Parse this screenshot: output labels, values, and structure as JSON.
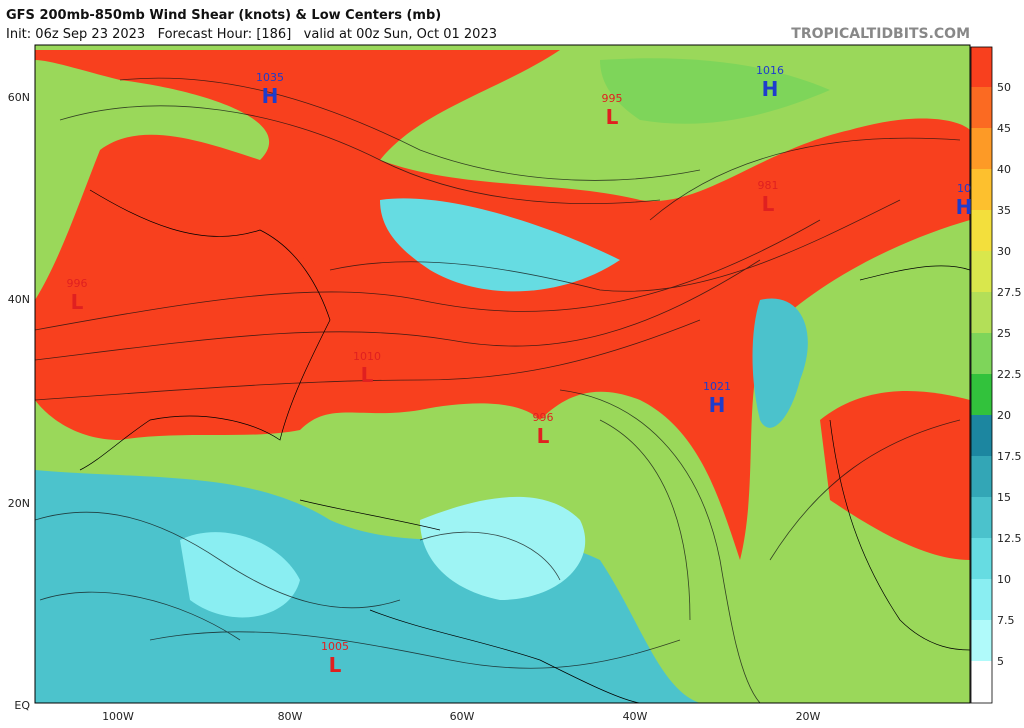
{
  "header": {
    "title": "GFS 200mb-850mb Wind Shear (knots) & Low Centers (mb)",
    "subtitle": "Init: 06z Sep 23 2023   Forecast Hour: [186]   valid at 00z Sun, Oct 01 2023",
    "credit": "TROPICALTIDBITS.COM"
  },
  "map": {
    "lat_labels": [
      "60N",
      "40N",
      "20N",
      "EQ"
    ],
    "lon_labels": [
      "100W",
      "80W",
      "60W",
      "40W",
      "20W"
    ],
    "centers": [
      {
        "type": "H",
        "pressure": "1035",
        "color": "#1e3ccc"
      },
      {
        "type": "L",
        "pressure": "995",
        "color": "#e02020"
      },
      {
        "type": "H",
        "pressure": "1016",
        "color": "#1e3ccc"
      },
      {
        "type": "L",
        "pressure": "981",
        "color": "#e02020"
      },
      {
        "type": "H",
        "pressure": "10",
        "color": "#1e3ccc"
      },
      {
        "type": "L",
        "pressure": "996",
        "color": "#e02020"
      },
      {
        "type": "L",
        "pressure": "1010",
        "color": "#e02020"
      },
      {
        "type": "L",
        "pressure": "996",
        "color": "#e02020"
      },
      {
        "type": "H",
        "pressure": "1021",
        "color": "#1e3ccc"
      },
      {
        "type": "L",
        "pressure": "1005",
        "color": "#e02020"
      }
    ]
  },
  "colorbar": {
    "ticks": [
      50,
      45,
      40,
      35,
      30,
      27.5,
      25,
      22.5,
      20,
      17.5,
      15,
      12.5,
      10,
      7.5,
      5
    ],
    "colors": [
      "#f8401e",
      "#fb6a22",
      "#fd9a26",
      "#fdc02e",
      "#f3df3c",
      "#d9e74c",
      "#b3df58",
      "#7ed55a",
      "#32c23c",
      "#1c86a0",
      "#33a6b6",
      "#4bc2cc",
      "#66dce2",
      "#8aeef2",
      "#b0fafa",
      "#ffffff"
    ]
  }
}
